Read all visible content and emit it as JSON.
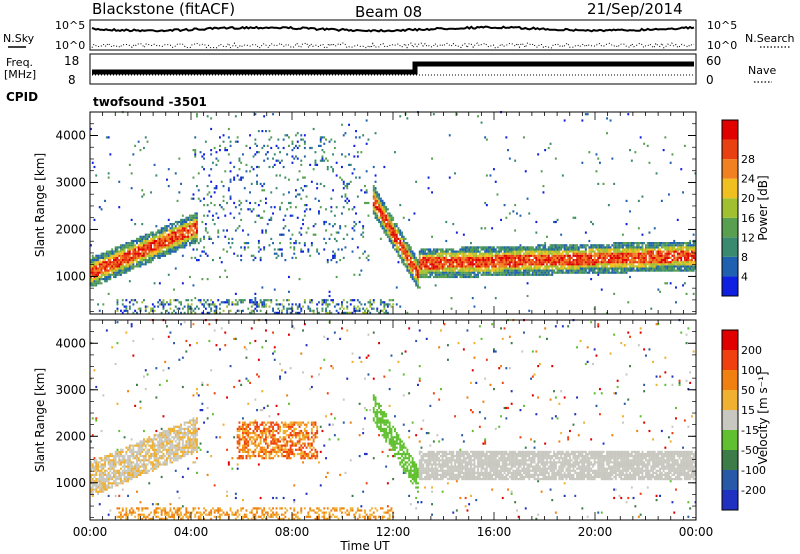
{
  "header": {
    "radar": "Blackstone (fitACF)",
    "beam": "Beam 08",
    "date": "21/Sep/2014"
  },
  "top_panels": {
    "nsky_label": "N.Sky",
    "nsearch_label": "N.Search",
    "freq_label_1": "Freq.",
    "freq_label_2": "[MHz]",
    "nave_label": "Nave",
    "cpid_label": "CPID",
    "cpid_value": "twofsound -3501",
    "nsky_ticks": [
      "10^5",
      "10^0"
    ],
    "nsearch_ticks": [
      "10^5",
      "10^0"
    ],
    "freq_ticks": [
      "18",
      "8"
    ],
    "nave_ticks": [
      "60",
      "0"
    ]
  },
  "chart_data": [
    {
      "type": "heatmap",
      "name": "power",
      "ylabel": "Slant Range [km]",
      "yticks": [
        "1000",
        "2000",
        "3000",
        "4000"
      ],
      "ylim": [
        200,
        4500
      ],
      "xlim": [
        0,
        24
      ],
      "colorbar_label": "Power [dB]",
      "colorbar_ticks": [
        "4",
        "8",
        "12",
        "16",
        "20",
        "24",
        "28"
      ],
      "colors": [
        "#1020e0",
        "#2060b0",
        "#3a8a70",
        "#58a050",
        "#a0c030",
        "#f0c020",
        "#f08020",
        "#e84010",
        "#e00000"
      ]
    },
    {
      "type": "heatmap",
      "name": "velocity",
      "ylabel": "Slant Range [km]",
      "yticks": [
        "1000",
        "2000",
        "3000",
        "4000"
      ],
      "ylim": [
        200,
        4500
      ],
      "xlim": [
        0,
        24
      ],
      "xlabel": "Time UT",
      "xticks": [
        "00:00",
        "04:00",
        "08:00",
        "12:00",
        "16:00",
        "20:00",
        "00:00"
      ],
      "colorbar_label": "Velocity [m s⁻¹]",
      "colorbar_ticks": [
        "200",
        "100",
        "50",
        "15",
        "-15",
        "-50",
        "-100",
        "-200"
      ],
      "colors": [
        "#2030c0",
        "#2858a8",
        "#3c7c48",
        "#60c030",
        "#c8c8c0",
        "#f0b030",
        "#f08010",
        "#f04010",
        "#e00000"
      ]
    }
  ]
}
